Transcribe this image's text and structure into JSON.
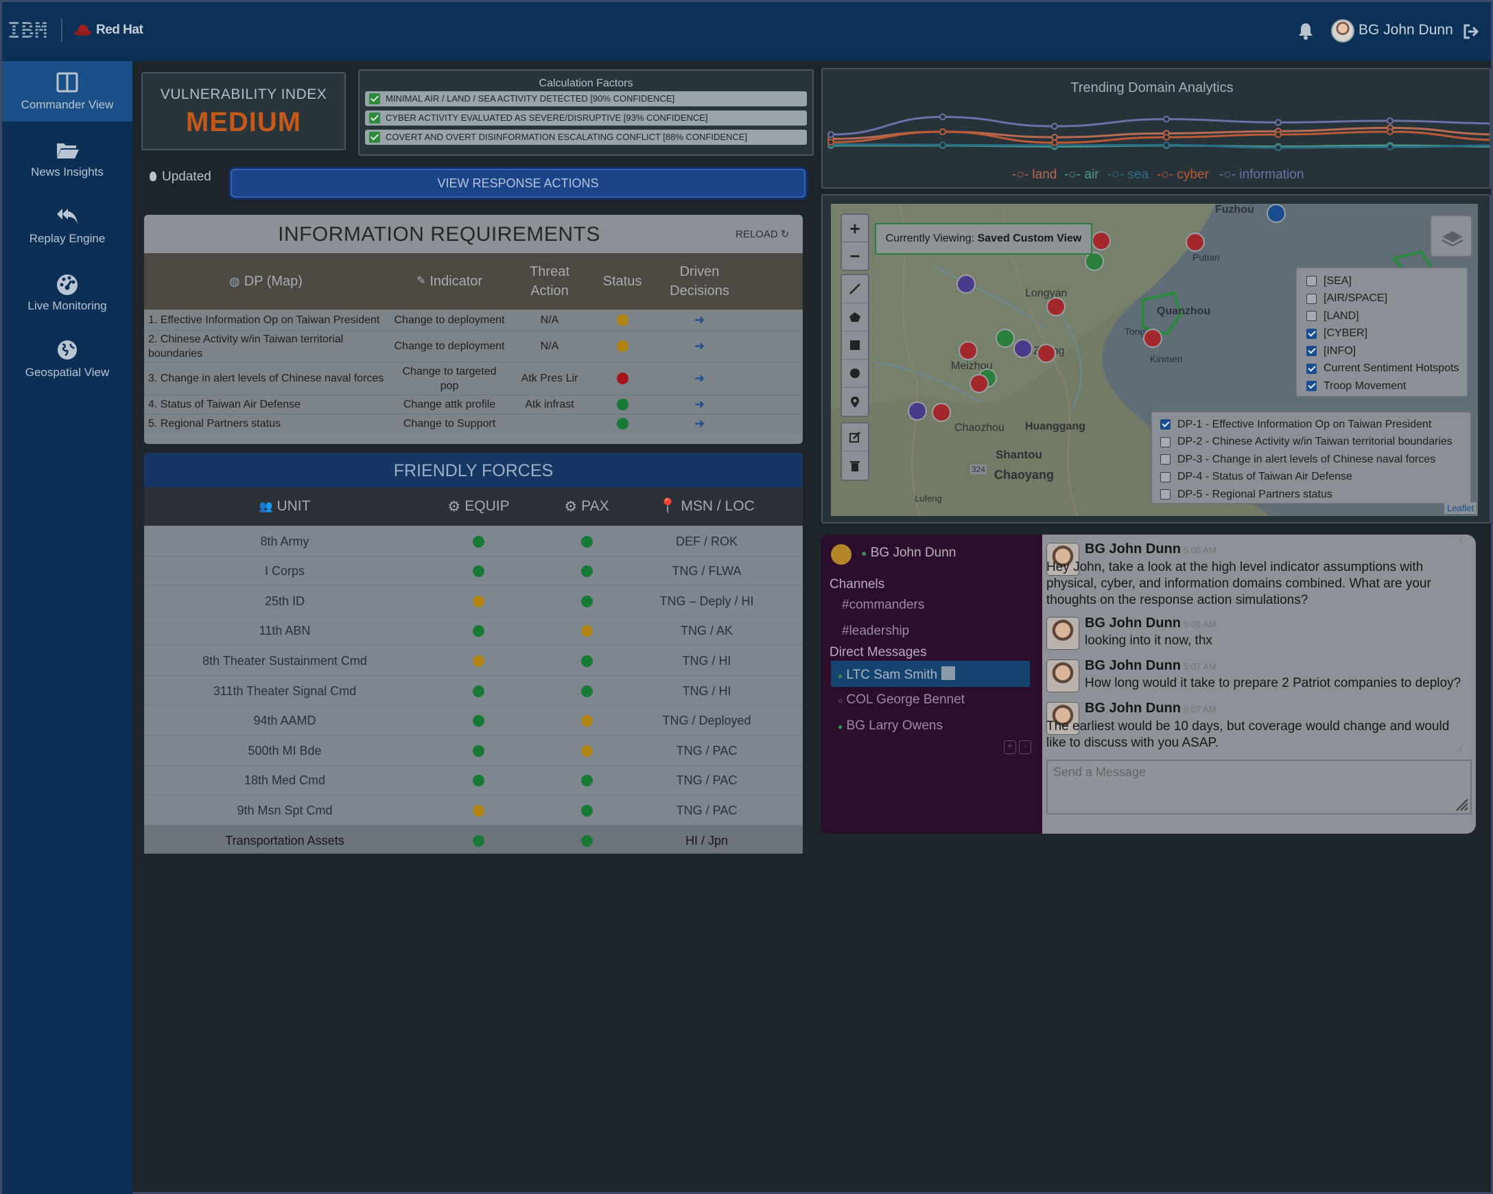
{
  "header": {
    "logo_primary": "IBM",
    "logo_secondary": "Red Hat",
    "user_name": "BG John Dunn",
    "icons": [
      "bell-icon",
      "avatar",
      "logout-icon"
    ]
  },
  "sidebar": {
    "items": [
      {
        "label": "Commander View",
        "icon": "columns-icon",
        "active": true
      },
      {
        "label": "News Insights",
        "icon": "folder-open-icon",
        "active": false
      },
      {
        "label": "Replay Engine",
        "icon": "reply-all-icon",
        "active": false
      },
      {
        "label": "Live Monitoring",
        "icon": "gauge-icon",
        "active": false
      },
      {
        "label": "Geospatial View",
        "icon": "globe-icon",
        "active": false
      }
    ]
  },
  "vulnerability": {
    "title": "VULNERABILITY INDEX",
    "value": "MEDIUM",
    "value_color": "#c25a1c"
  },
  "calculation_factors": {
    "title": "Calculation Factors",
    "items": [
      "MINIMAL AIR / LAND / SEA ACTIVITY DETECTED [90% CONFIDENCE]",
      "CYBER ACTIVITY EVALUATED AS SEVERE/DISRUPTIVE [93% CONFIDENCE]",
      "COVERT AND OVERT DISINFORMATION ESCALATING CONFLICT [88% CONFIDENCE]"
    ]
  },
  "status": {
    "updated_label": "Updated",
    "view_response_label": "VIEW RESPONSE ACTIONS"
  },
  "info_requirements": {
    "title": "INFORMATION REQUIREMENTS",
    "reload_label": "RELOAD",
    "headers": {
      "dp": "DP (Map)",
      "indicator": "Indicator",
      "threat": "Threat Action",
      "status": "Status",
      "driven": "Driven Decisions"
    },
    "rows": [
      {
        "dp": "1. Effective Information Op on Taiwan President",
        "indicator": "Change to deployment",
        "threat": "N/A",
        "status": "yellow"
      },
      {
        "dp": "2. Chinese Activity w/in Taiwan territorial boundaries",
        "indicator": "Change to deployment",
        "threat": "N/A",
        "status": "yellow"
      },
      {
        "dp": "3. Change in alert levels of Chinese naval forces",
        "indicator": "Change to targeted pop",
        "threat": "Atk Pres Lir",
        "status": "red"
      },
      {
        "dp": "4. Status of Taiwan Air Defense",
        "indicator": "Change attk profile",
        "threat": "Atk infrast",
        "status": "green"
      },
      {
        "dp": "5. Regional Partners status",
        "indicator": "Change to Support",
        "threat": "",
        "status": "green"
      }
    ]
  },
  "friendly_forces": {
    "title": "FRIENDLY FORCES",
    "headers": {
      "unit": "UNIT",
      "equip": "EQUIP",
      "pax": "PAX",
      "loc": "MSN / LOC"
    },
    "rows": [
      {
        "unit": "8th Army",
        "equip": "green",
        "pax": "green",
        "loc": "DEF / ROK"
      },
      {
        "unit": "I Corps",
        "equip": "green",
        "pax": "green",
        "loc": "TNG / FLWA"
      },
      {
        "unit": "25th ID",
        "equip": "yellow",
        "pax": "green",
        "loc": "TNG – Deply / HI"
      },
      {
        "unit": "11th ABN",
        "equip": "green",
        "pax": "yellow",
        "loc": "TNG / AK"
      },
      {
        "unit": "8th Theater Sustainment Cmd",
        "equip": "yellow",
        "pax": "green",
        "loc": "TNG / HI"
      },
      {
        "unit": "311th Theater Signal Cmd",
        "equip": "green",
        "pax": "green",
        "loc": "TNG / HI"
      },
      {
        "unit": "94th AAMD",
        "equip": "green",
        "pax": "yellow",
        "loc": "TNG / Deployed"
      },
      {
        "unit": "500th MI Bde",
        "equip": "green",
        "pax": "yellow",
        "loc": "TNG / PAC"
      },
      {
        "unit": "18th Med Cmd",
        "equip": "green",
        "pax": "green",
        "loc": "TNG / PAC"
      },
      {
        "unit": "9th Msn Spt Cmd",
        "equip": "yellow",
        "pax": "green",
        "loc": "TNG / PAC"
      },
      {
        "unit": "Transportation Assets",
        "equip": "green",
        "pax": "green",
        "loc": "HI / Jpn"
      }
    ]
  },
  "trending": {
    "title": "Trending Domain Analytics",
    "legend": [
      {
        "name": "land",
        "color": "#b86a52"
      },
      {
        "name": "air",
        "color": "#4f9a86"
      },
      {
        "name": "sea",
        "color": "#2a6f86"
      },
      {
        "name": "cyber",
        "color": "#bb5a36"
      },
      {
        "name": "information",
        "color": "#6f6fa8"
      }
    ]
  },
  "chart_data": {
    "type": "line",
    "title": "Trending Domain Analytics",
    "x": [
      1,
      2,
      3,
      4,
      5,
      6,
      7
    ],
    "series": [
      {
        "name": "land",
        "values": [
          0.42,
          0.55,
          0.45,
          0.52,
          0.56,
          0.62,
          0.5
        ]
      },
      {
        "name": "air",
        "values": [
          0.3,
          0.3,
          0.28,
          0.3,
          0.28,
          0.3,
          0.28
        ]
      },
      {
        "name": "sea",
        "values": [
          0.32,
          0.31,
          0.3,
          0.31,
          0.26,
          0.27,
          0.3
        ]
      },
      {
        "name": "cyber",
        "values": [
          0.36,
          0.55,
          0.35,
          0.45,
          0.5,
          0.55,
          0.4
        ]
      },
      {
        "name": "information",
        "values": [
          0.5,
          0.82,
          0.65,
          0.78,
          0.72,
          0.75,
          0.7
        ]
      }
    ]
  },
  "map": {
    "current_view_prefix": "Currently Viewing:",
    "current_view_name": "Saved Custom View",
    "layers": [
      {
        "label": "[SEA]",
        "checked": false
      },
      {
        "label": "[AIR/SPACE]",
        "checked": false
      },
      {
        "label": "[LAND]",
        "checked": false
      },
      {
        "label": "[CYBER]",
        "checked": true
      },
      {
        "label": "[INFO]",
        "checked": true
      },
      {
        "label": "Current Sentiment Hotspots",
        "checked": true
      },
      {
        "label": "Troop Movement",
        "checked": true
      }
    ],
    "dp_filters": [
      {
        "label": "DP-1 - Effective Information Op on Taiwan President",
        "checked": true
      },
      {
        "label": "DP-2 - Chinese Activity w/in Taiwan territorial boundaries",
        "checked": false
      },
      {
        "label": "DP-3 - Change in alert levels of Chinese naval forces",
        "checked": false
      },
      {
        "label": "DP-4 - Status of Taiwan Air Defense",
        "checked": false
      },
      {
        "label": "DP-5 - Regional Partners status",
        "checked": false
      }
    ],
    "places": [
      "Fuzhou",
      "Longyan",
      "Quanzhou",
      "Meizhou",
      "Kinmen",
      "Chaozhou",
      "Huanggang",
      "Shantou",
      "Chaoyang",
      "Lufeng",
      "Zhang",
      "Tong'an",
      "Putian",
      "324"
    ],
    "attribution": "Leaflet"
  },
  "chat": {
    "user": "BG John Dunn",
    "channels_title": "Channels",
    "channels": [
      "#commanders",
      "#leadership"
    ],
    "dm_title": "Direct Messages",
    "dms": [
      {
        "name": "LTC Sam Smith",
        "active": true,
        "online": true
      },
      {
        "name": "COL George Bennet",
        "active": false,
        "online": false
      },
      {
        "name": "BG Larry Owens",
        "active": false,
        "online": true
      }
    ],
    "messages": [
      {
        "author": "BG John Dunn",
        "time": "5:06 AM",
        "text": "Hey John, take a look at the high level indicator assumptions with physical, cyber, and information domains combined. What are your thoughts on the response action simulations?"
      },
      {
        "author": "BG John Dunn",
        "time": "5:06 AM",
        "text": "looking into it now, thx"
      },
      {
        "author": "BG John Dunn",
        "time": "5:07 AM",
        "text": "How long would it take to prepare 2 Patriot companies to deploy?"
      },
      {
        "author": "BG John Dunn",
        "time": "5:07 AM",
        "text": "The earliest would be 10 days, but coverage would change and would like to discuss with you ASAP."
      }
    ],
    "input_placeholder": "Send a Message"
  }
}
